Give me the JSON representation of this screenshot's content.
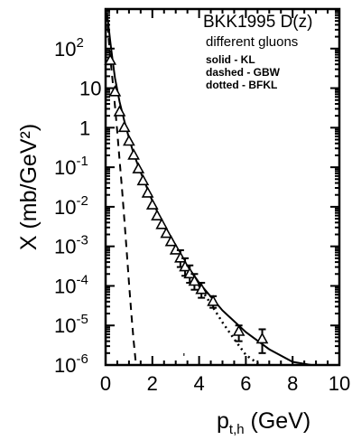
{
  "chart_data": {
    "type": "scatter",
    "title": "",
    "legend": {
      "title": "BKK1995 D(z)",
      "subtitle": "different gluons",
      "items": [
        {
          "label": "solid - KL",
          "style": "solid"
        },
        {
          "label": "dashed - GBW",
          "style": "dashed"
        },
        {
          "label": "dotted - BFKL",
          "style": "dotted"
        }
      ],
      "placement": "top-right"
    },
    "xlabel": {
      "base": "p",
      "sub": "t,h",
      "rest": " (GeV)"
    },
    "ylabel": "X (mb/GeV²)",
    "xlim": [
      0,
      10
    ],
    "ylim": [
      1e-06,
      1000
    ],
    "yscale": "log",
    "grid": false,
    "x_ticks": [
      "0",
      "2",
      "4",
      "6",
      "8",
      "10"
    ],
    "y_ticks": [
      {
        "value": 1e-06,
        "base": "10",
        "exp": "-6"
      },
      {
        "value": 1e-05,
        "base": "10",
        "exp": "-5"
      },
      {
        "value": 0.0001,
        "base": "10",
        "exp": "-4"
      },
      {
        "value": 0.001,
        "base": "10",
        "exp": "-3"
      },
      {
        "value": 0.01,
        "base": "10",
        "exp": "-2"
      },
      {
        "value": 0.1,
        "base": "10",
        "exp": "-1"
      },
      {
        "value": 1,
        "base": "1",
        "exp": ""
      },
      {
        "value": 10,
        "base": "10",
        "exp": ""
      },
      {
        "value": 100,
        "base": "10",
        "exp": "2"
      }
    ],
    "series": [
      {
        "style": "points",
        "marker": "triangle-open",
        "x": [
          0.2,
          0.4,
          0.6,
          0.8,
          1.0,
          1.2,
          1.4,
          1.6,
          1.8,
          2.0,
          2.2,
          2.4,
          2.6,
          2.8,
          3.0,
          3.2,
          3.4,
          3.6,
          3.8,
          4.1,
          4.6,
          5.7,
          6.7
        ],
        "y": [
          50,
          8,
          2.5,
          1.0,
          0.45,
          0.2,
          0.09,
          0.045,
          0.022,
          0.011,
          0.0058,
          0.0035,
          0.0021,
          0.0013,
          0.0008,
          0.0005,
          0.0003,
          0.0002,
          0.00013,
          8e-05,
          4e-05,
          7e-06,
          4.5e-06
        ],
        "err_lo": [
          null,
          null,
          null,
          null,
          null,
          null,
          null,
          null,
          null,
          null,
          null,
          null,
          null,
          null,
          null,
          0.0003,
          0.00018,
          0.00012,
          8e-05,
          5e-05,
          2.8e-05,
          4e-06,
          2e-06
        ],
        "err_hi": [
          null,
          null,
          null,
          null,
          null,
          null,
          null,
          null,
          null,
          null,
          null,
          null,
          null,
          null,
          null,
          0.0008,
          0.0005,
          0.00033,
          0.0002,
          0.00012,
          5.5e-05,
          1e-05,
          8e-06
        ]
      },
      {
        "style": "solid",
        "x": [
          0.05,
          0.1,
          0.2,
          0.3,
          0.4,
          0.6,
          0.8,
          1.0,
          1.2,
          1.5,
          2.0,
          2.5,
          3.0,
          3.5,
          4.0,
          5.0,
          6.0,
          7.0,
          8.0,
          8.8
        ],
        "y": [
          800,
          500,
          150,
          50,
          18,
          4.5,
          1.5,
          0.55,
          0.22,
          0.075,
          0.014,
          0.0032,
          0.0009,
          0.00032,
          0.00012,
          2.4e-05,
          6.8e-06,
          2.5e-06,
          1.2e-06,
          1e-06
        ]
      },
      {
        "style": "dashed",
        "x": [
          0.05,
          0.1,
          0.2,
          0.3,
          0.4,
          0.5,
          0.6,
          0.7,
          0.8,
          0.9,
          1.0,
          1.1,
          1.2,
          1.3
        ],
        "y": [
          800,
          300,
          60,
          15,
          3.5,
          0.8,
          0.15,
          0.03,
          0.005,
          0.0008,
          0.00012,
          2e-05,
          4e-06,
          1e-06
        ]
      },
      {
        "style": "dotted",
        "x": [
          3.5,
          4.0,
          4.5,
          5.0,
          5.5,
          6.0,
          6.5,
          6.7
        ],
        "y": [
          0.0003,
          0.0001,
          3.5e-05,
          1.2e-05,
          4.5e-06,
          1.8e-06,
          1.1e-06,
          1e-06
        ]
      }
    ],
    "annotations": [
      {
        "text": "'",
        "x": 3.3,
        "y": 1.2e-06
      }
    ]
  }
}
